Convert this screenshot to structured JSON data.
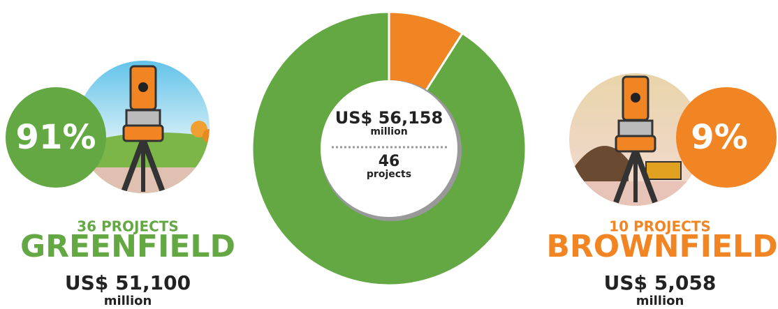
{
  "chart_data": {
    "type": "donut",
    "categories": [
      "GREENFIELD",
      "BROWNFIELD"
    ],
    "values": [
      51100,
      5058
    ],
    "value_labels": [
      "US$ 51,100",
      "US$ 5,058"
    ],
    "colors": [
      "#64a844",
      "#f18524"
    ],
    "share_labels": [
      "91%",
      "9%"
    ],
    "project_labels": [
      "36 PROJECTS",
      "10 PROJECTS"
    ],
    "unit": "million",
    "center": {
      "total_label": "US$ 56,158",
      "unit": "million",
      "projects": 46,
      "projects_unit": "projects"
    }
  }
}
